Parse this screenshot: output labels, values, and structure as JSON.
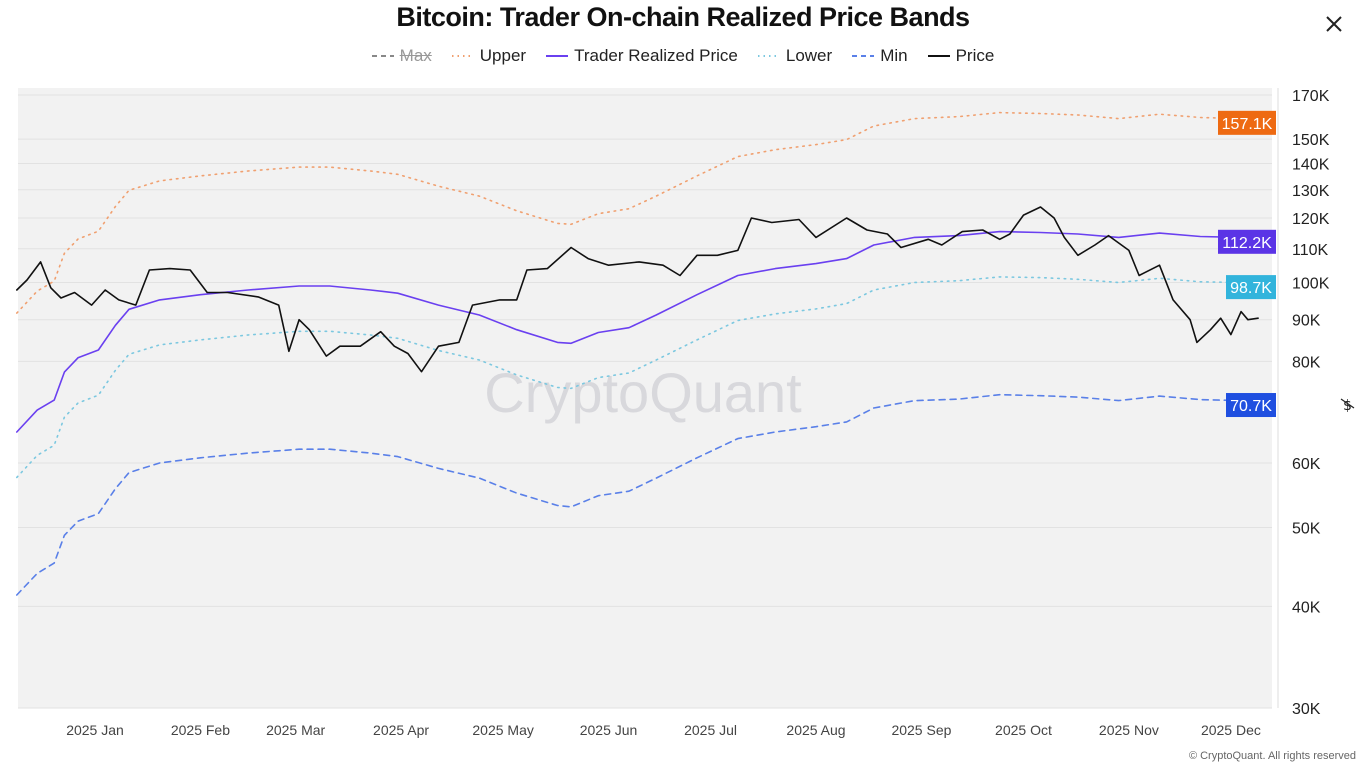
{
  "title": "Bitcoin: Trader On-chain Realized Price Bands",
  "copyright": "© CryptoQuant. All rights reserved",
  "watermark": "CryptoQuant",
  "currency_icon": "dollar-strikethrough-icon",
  "chart_data": {
    "type": "line",
    "title": "Bitcoin: Trader On-chain Realized Price Bands",
    "y_scale": "log",
    "ylim": [
      30000,
      172000
    ],
    "y_axis_position": "right",
    "y_ticks": [
      "170K",
      "150K",
      "140K",
      "130K",
      "120K",
      "110K",
      "100K",
      "90K",
      "80K",
      "60K",
      "50K",
      "40K",
      "30K"
    ],
    "y_tick_values": [
      170000,
      150000,
      140000,
      130000,
      120000,
      110000,
      100000,
      90000,
      80000,
      60000,
      50000,
      40000,
      30000
    ],
    "x_ticks": [
      "2025 Jan",
      "2025 Feb",
      "2025 Mar",
      "2025 Apr",
      "2025 May",
      "2025 Jun",
      "2025 Jul",
      "2025 Aug",
      "2025 Sep",
      "2025 Oct",
      "2025 Nov",
      "2025 Dec"
    ],
    "x_tick_dates": [
      "2025-01-01",
      "2025-02-01",
      "2025-03-01",
      "2025-04-01",
      "2025-05-01",
      "2025-06-01",
      "2025-07-01",
      "2025-08-01",
      "2025-09-01",
      "2025-10-01",
      "2025-11-01",
      "2025-12-01"
    ],
    "xlim": [
      "2024-12-09",
      "2025-12-22"
    ],
    "grid": true,
    "legend_placement": "top",
    "band_dates": [
      "2024-12-09",
      "2024-12-15",
      "2024-12-20",
      "2024-12-23",
      "2024-12-27",
      "2025-01-02",
      "2025-01-07",
      "2025-01-11",
      "2025-01-20",
      "2025-02-01",
      "2025-02-15",
      "2025-03-02",
      "2025-03-11",
      "2025-03-23",
      "2025-03-31",
      "2025-04-12",
      "2025-04-24",
      "2025-05-05",
      "2025-05-17",
      "2025-05-21",
      "2025-05-29",
      "2025-06-07",
      "2025-06-15",
      "2025-06-27",
      "2025-07-09",
      "2025-07-20",
      "2025-08-01",
      "2025-08-10",
      "2025-08-18",
      "2025-08-30",
      "2025-09-12",
      "2025-09-24",
      "2025-10-06",
      "2025-10-17",
      "2025-10-29",
      "2025-11-10",
      "2025-11-22",
      "2025-12-04",
      "2025-12-09"
    ],
    "price_dates": [
      "2024-12-09",
      "2024-12-12",
      "2024-12-16",
      "2024-12-19",
      "2024-12-22",
      "2024-12-26",
      "2024-12-31",
      "2025-01-04",
      "2025-01-08",
      "2025-01-13",
      "2025-01-17",
      "2025-01-23",
      "2025-01-29",
      "2025-02-03",
      "2025-02-09",
      "2025-02-18",
      "2025-02-24",
      "2025-02-27",
      "2025-03-02",
      "2025-03-05",
      "2025-03-10",
      "2025-03-14",
      "2025-03-20",
      "2025-03-26",
      "2025-03-30",
      "2025-04-03",
      "2025-04-07",
      "2025-04-12",
      "2025-04-18",
      "2025-04-22",
      "2025-04-30",
      "2025-05-05",
      "2025-05-08",
      "2025-05-14",
      "2025-05-21",
      "2025-05-26",
      "2025-06-01",
      "2025-06-10",
      "2025-06-17",
      "2025-06-22",
      "2025-06-27",
      "2025-07-03",
      "2025-07-09",
      "2025-07-13",
      "2025-07-19",
      "2025-07-27",
      "2025-08-01",
      "2025-08-10",
      "2025-08-16",
      "2025-08-22",
      "2025-08-26",
      "2025-09-03",
      "2025-09-07",
      "2025-09-13",
      "2025-09-19",
      "2025-09-24",
      "2025-09-27",
      "2025-10-01",
      "2025-10-06",
      "2025-10-10",
      "2025-10-13",
      "2025-10-17",
      "2025-10-22",
      "2025-10-26",
      "2025-11-01",
      "2025-11-04",
      "2025-11-10",
      "2025-11-14",
      "2025-11-19",
      "2025-11-21",
      "2025-11-25",
      "2025-11-28",
      "2025-12-01",
      "2025-12-04",
      "2025-12-06",
      "2025-12-09"
    ],
    "series": [
      {
        "name": "Max",
        "color": "#888888",
        "style": "dashed",
        "hidden": true,
        "values": []
      },
      {
        "name": "Upper",
        "color": "#f0a070",
        "style": "dotted",
        "dates": "band_dates",
        "last_label": "157.1K",
        "label_color": "#ee6a12",
        "values": [
          91700,
          97600,
          100400,
          108600,
          113100,
          115600,
          124000,
          129800,
          133300,
          135200,
          137100,
          138600,
          138600,
          137100,
          135800,
          131300,
          127700,
          122500,
          118200,
          117900,
          121500,
          123200,
          127700,
          135200,
          142800,
          145600,
          147700,
          149800,
          155700,
          159000,
          159900,
          161700,
          161300,
          160600,
          159000,
          161000,
          159500,
          159000,
          157100
        ]
      },
      {
        "name": "Trader Realized Price",
        "color": "#6a40f0",
        "style": "solid",
        "dates": "band_dates",
        "last_label": "112.2K",
        "label_color": "#5b34e6",
        "values": [
          65500,
          69700,
          71700,
          77600,
          80800,
          82600,
          88600,
          92700,
          95200,
          96600,
          97900,
          99000,
          99000,
          97900,
          97000,
          93800,
          91200,
          87500,
          84400,
          84200,
          86800,
          88000,
          91200,
          96600,
          102000,
          104000,
          105500,
          107000,
          111200,
          113600,
          114200,
          115500,
          115200,
          114700,
          113600,
          115000,
          113900,
          113600,
          112200
        ]
      },
      {
        "name": "Lower",
        "color": "#7cc8e0",
        "style": "dotted",
        "dates": "band_dates",
        "last_label": "98.7K",
        "label_color": "#32b4dc",
        "values": [
          57600,
          61300,
          63100,
          68300,
          71100,
          72700,
          78000,
          81600,
          83800,
          85000,
          86200,
          87100,
          87100,
          86200,
          85400,
          82500,
          80300,
          77000,
          74300,
          74100,
          76400,
          77400,
          80300,
          85000,
          89800,
          91500,
          92800,
          94200,
          97900,
          100000,
          100500,
          101600,
          101400,
          100900,
          100000,
          101200,
          100200,
          100000,
          98700
        ]
      },
      {
        "name": "Min",
        "color": "#5a80e8",
        "style": "dashed",
        "dates": "band_dates",
        "last_label": "70.7K",
        "label_color": "#1f4fe0",
        "values": [
          41300,
          43900,
          45200,
          48900,
          50900,
          52000,
          55800,
          58400,
          60000,
          60900,
          61700,
          62400,
          62400,
          61700,
          61100,
          59100,
          57500,
          55100,
          53200,
          53000,
          54700,
          55400,
          57500,
          60900,
          64300,
          65500,
          66500,
          67400,
          70100,
          71600,
          71900,
          72800,
          72600,
          72300,
          71600,
          72500,
          71800,
          71600,
          70700
        ]
      },
      {
        "name": "Price",
        "color": "#111111",
        "style": "solid",
        "dates": "price_dates",
        "values": [
          97900,
          100700,
          106000,
          98500,
          95700,
          97200,
          93800,
          97900,
          95200,
          93800,
          103600,
          104000,
          103600,
          97200,
          97200,
          96000,
          93800,
          82300,
          90000,
          87500,
          81200,
          83500,
          83500,
          87000,
          83500,
          81800,
          77700,
          83500,
          84400,
          93800,
          95200,
          95200,
          103600,
          104000,
          110400,
          107000,
          105000,
          106000,
          105000,
          102000,
          108000,
          108000,
          109500,
          120000,
          118500,
          119500,
          113600,
          120000,
          116000,
          114700,
          110400,
          113000,
          111200,
          115500,
          116000,
          113000,
          114700,
          121000,
          123800,
          120000,
          113600,
          108000,
          111200,
          114200,
          109500,
          102000,
          105000,
          95200,
          90000,
          84400,
          87500,
          90400,
          86300,
          92100,
          90000,
          90400
        ]
      }
    ]
  }
}
